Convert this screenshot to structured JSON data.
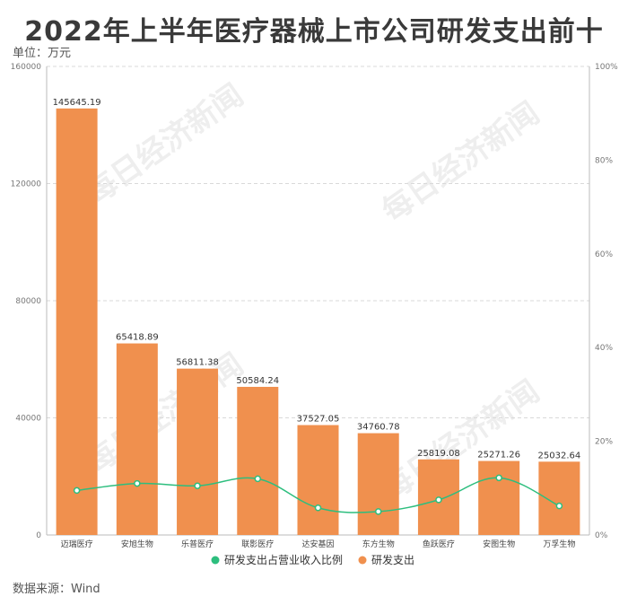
{
  "title": "2022年上半年医疗器械上市公司研发支出前十",
  "unit_label": "单位：万元",
  "source": "数据来源：Wind",
  "watermark": "每日经济新闻",
  "colors": {
    "bar": "#F0904E",
    "line": "#2DBE7E",
    "grid": "#d9d9d9"
  },
  "chart_data": {
    "type": "bar",
    "categories": [
      "迈瑞医疗",
      "安旭生物",
      "乐普医疗",
      "联影医疗",
      "达安基因",
      "东方生物",
      "鱼跃医疗",
      "安图生物",
      "万孚生物"
    ],
    "series": [
      {
        "name": "研发支出",
        "type": "bar",
        "axis": "left",
        "values": [
          145645.19,
          65418.89,
          56811.38,
          50584.24,
          37527.05,
          34760.78,
          25819.08,
          25271.26,
          25032.64
        ]
      },
      {
        "name": "研发支出占营业收入比例",
        "type": "line",
        "axis": "right",
        "values": [
          9.5,
          11.0,
          10.5,
          12.0,
          5.8,
          5.0,
          7.5,
          12.2,
          6.2
        ]
      }
    ],
    "value_labels": [
      "145645.19",
      "65418.89",
      "56811.38",
      "50584.24",
      "37527.05",
      "34760.78",
      "25819.08",
      "25271.26",
      "25032.64"
    ],
    "y_left": {
      "ylim": [
        0,
        160000
      ],
      "ticks": [
        "0",
        "40000",
        "80000",
        "120000",
        "160000"
      ]
    },
    "y_right": {
      "ylim": [
        0,
        100
      ],
      "ticks": [
        "0%",
        "20%",
        "40%",
        "60%",
        "80%",
        "100%"
      ]
    },
    "grid": true,
    "legend_position": "bottom",
    "legend": [
      "研发支出占营业收入比例",
      "研发支出"
    ]
  }
}
